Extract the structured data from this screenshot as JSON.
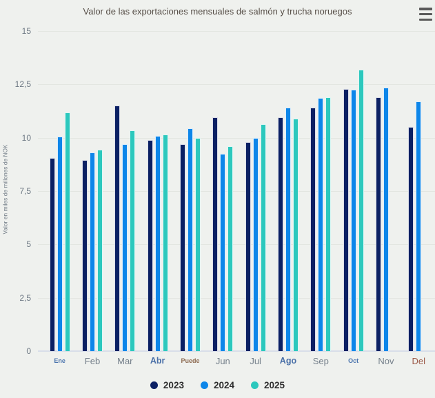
{
  "header": {
    "title": "Valor de las exportaciones mensuales de salmón y trucha noruegos"
  },
  "colors": {
    "background": "#eff1ee",
    "gridline": "#e3e6e1",
    "baseline": "#d8dee9",
    "series_2023": "#0b2063",
    "series_2024": "#0d86e9",
    "series_2025": "#2cc8bd"
  },
  "chart_data": {
    "type": "bar",
    "title": "Valor de las exportaciones mensuales de salmón y trucha noruegos",
    "xlabel": "",
    "ylabel": "Valor en miles de millones de NOK",
    "ylim": [
      0,
      15
    ],
    "yticks": [
      0,
      2.5,
      5,
      7.5,
      10,
      12.5,
      15
    ],
    "ytick_labels": [
      "0",
      "2,5",
      "5",
      "7,5",
      "10",
      "12,5",
      "15"
    ],
    "grid": true,
    "legend_position": "bottom",
    "categories": [
      "Ene",
      "Feb",
      "Mar",
      "Abr",
      "Puede",
      "Jun",
      "Jul",
      "Ago",
      "Sep",
      "Oct",
      "Nov",
      "Del"
    ],
    "category_styles": [
      "accent-small",
      "default",
      "default",
      "accent",
      "warn-small",
      "default",
      "default",
      "accent",
      "default",
      "accent-small",
      "default",
      "warn"
    ],
    "series": [
      {
        "name": "2023",
        "color": "#0b2063",
        "values": [
          9.05,
          8.95,
          11.5,
          9.9,
          9.7,
          10.95,
          9.8,
          10.95,
          11.4,
          12.3,
          11.9,
          10.5
        ]
      },
      {
        "name": "2024",
        "color": "#0d86e9",
        "values": [
          10.05,
          9.3,
          9.7,
          10.1,
          10.45,
          9.25,
          10.0,
          11.4,
          11.85,
          12.25,
          12.35,
          11.7
        ]
      },
      {
        "name": "2025",
        "color": "#2cc8bd",
        "values": [
          11.2,
          9.45,
          10.35,
          10.15,
          10.0,
          9.6,
          10.65,
          10.9,
          11.9,
          13.2,
          null,
          null
        ]
      }
    ]
  }
}
